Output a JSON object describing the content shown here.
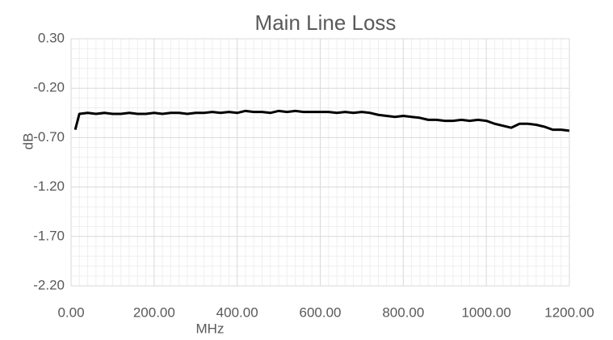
{
  "chart_data": {
    "type": "line",
    "title": "Main Line Loss",
    "x_label": "MHz",
    "y_label": "dB",
    "x": [
      10,
      20,
      40,
      60,
      80,
      100,
      120,
      140,
      160,
      180,
      200,
      220,
      240,
      260,
      280,
      300,
      320,
      340,
      360,
      380,
      400,
      420,
      440,
      460,
      480,
      500,
      520,
      540,
      560,
      580,
      600,
      620,
      640,
      660,
      680,
      700,
      720,
      740,
      760,
      780,
      800,
      820,
      840,
      860,
      880,
      900,
      920,
      940,
      960,
      980,
      1000,
      1020,
      1040,
      1060,
      1080,
      1100,
      1120,
      1140,
      1160,
      1180,
      1200
    ],
    "series": [
      {
        "name": "Main Line Loss",
        "color": "#000000",
        "values": [
          -0.62,
          -0.46,
          -0.45,
          -0.46,
          -0.45,
          -0.46,
          -0.46,
          -0.45,
          -0.46,
          -0.46,
          -0.45,
          -0.46,
          -0.45,
          -0.45,
          -0.46,
          -0.45,
          -0.45,
          -0.44,
          -0.45,
          -0.44,
          -0.45,
          -0.43,
          -0.44,
          -0.44,
          -0.45,
          -0.43,
          -0.44,
          -0.43,
          -0.44,
          -0.44,
          -0.44,
          -0.44,
          -0.45,
          -0.44,
          -0.45,
          -0.44,
          -0.45,
          -0.47,
          -0.48,
          -0.49,
          -0.48,
          -0.49,
          -0.5,
          -0.52,
          -0.52,
          -0.53,
          -0.53,
          -0.52,
          -0.53,
          -0.52,
          -0.53,
          -0.56,
          -0.58,
          -0.6,
          -0.56,
          -0.56,
          -0.57,
          -0.59,
          -0.62,
          -0.62,
          -0.63
        ]
      }
    ],
    "xlim": [
      0,
      1200
    ],
    "xticks": [
      {
        "value": 0,
        "label": "0.00"
      },
      {
        "value": 200,
        "label": "200.00"
      },
      {
        "value": 400,
        "label": "400.00"
      },
      {
        "value": 600,
        "label": "600.00"
      },
      {
        "value": 800,
        "label": "800.00"
      },
      {
        "value": 1000,
        "label": "1000.00"
      },
      {
        "value": 1200,
        "label": "1200.00"
      }
    ],
    "ylim": [
      -2.2,
      0.3
    ],
    "yticks": [
      {
        "value": -2.2,
        "label": "-2.20"
      },
      {
        "value": -1.7,
        "label": "-1.70"
      },
      {
        "value": -1.2,
        "label": "-1.20"
      },
      {
        "value": -0.7,
        "label": "-0.70"
      },
      {
        "value": -0.2,
        "label": "-0.20"
      },
      {
        "value": 0.3,
        "label": "0.30"
      }
    ],
    "grid": true,
    "minor_grid": true
  }
}
